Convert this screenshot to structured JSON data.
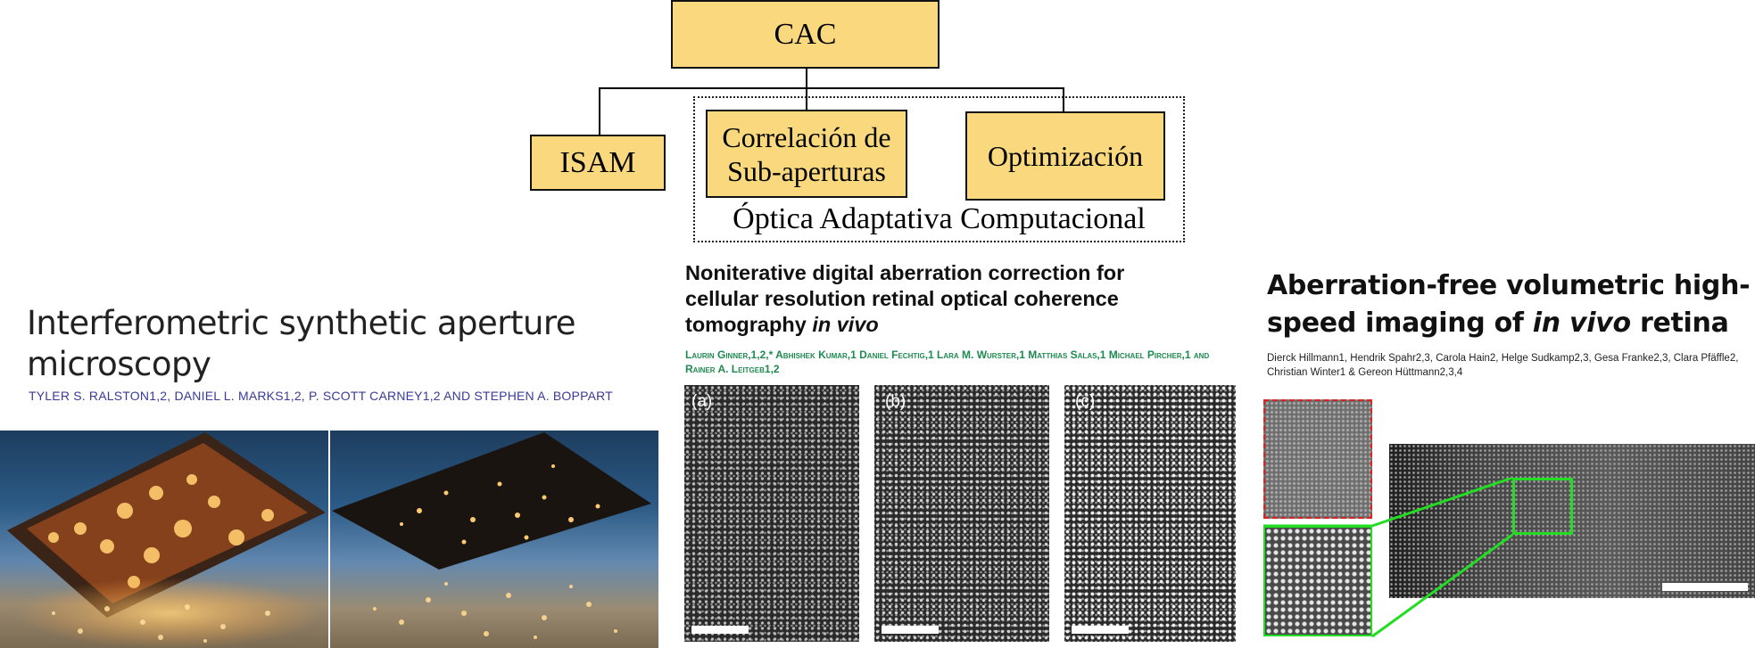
{
  "diagram": {
    "root": "CAC",
    "children": [
      "ISAM",
      "Correlación de Sub-aperturas",
      "Optimización"
    ],
    "group_label": "Óptica Adaptativa Computacional",
    "box_color": "#fad97e"
  },
  "papers": [
    {
      "title": "Interferometric synthetic aperture microscopy",
      "authors": "TYLER S. RALSTON1,2, DANIEL L. MARKS1,2, P. SCOTT CARNEY1,2 AND STEPHEN A. BOPPART"
    },
    {
      "title": "Noniterative digital aberration correction for cellular resolution retinal optical coherence tomography",
      "title_italic": "in vivo",
      "authors": "Laurin Ginner,1,2,* Abhishek Kumar,1 Daniel Fechtig,1 Lara M. Wurster,1 Matthias Salas,1 Michael Pircher,1 and Rainer A. Leitgeb1,2",
      "panel_labels": [
        "(a)",
        "(b)",
        "(c)"
      ]
    },
    {
      "title_line1": "Aberration-free volumetric high-",
      "title_line2_pre": "speed imaging of",
      "title_italic": "in vivo",
      "title_line2_post": "retina",
      "authors": "Dierck Hillmann1, Hendrik Spahr2,3, Carola Hain2, Helge Sudkamp2,3, Gesa Franke2,3, Clara Pfäffle2, Christian Winter1 & Gereon Hüttmann2,3,4"
    }
  ]
}
